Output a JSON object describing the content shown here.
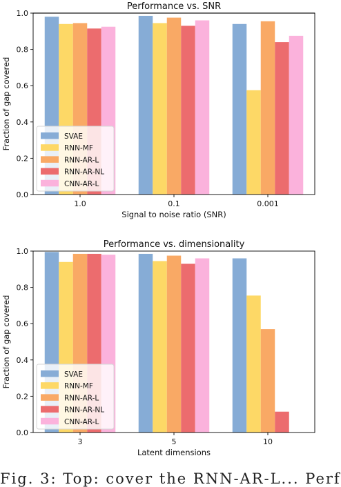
{
  "chart_data": [
    {
      "type": "bar",
      "title": "Performance vs. SNR",
      "xlabel": "Signal to noise ratio (SNR)",
      "ylabel": "Fraction of gap covered",
      "categories": [
        "1.0",
        "0.1",
        "0.001"
      ],
      "ylim": [
        0,
        1.0
      ],
      "yticks": [
        "0.0",
        "0.2",
        "0.4",
        "0.6",
        "0.8",
        "1.0"
      ],
      "reference_line": 1.0,
      "grid": false,
      "legend_position": "lower-left",
      "series": [
        {
          "name": "SVAE",
          "color": "#86acd6",
          "values": [
            0.98,
            0.985,
            0.94
          ]
        },
        {
          "name": "RNN-MF",
          "color": "#fdd866",
          "values": [
            0.94,
            0.945,
            0.575
          ]
        },
        {
          "name": "RNN-AR-L",
          "color": "#f9a965",
          "values": [
            0.945,
            0.975,
            0.955
          ]
        },
        {
          "name": "RNN-AR-NL",
          "color": "#ec6c6e",
          "values": [
            0.915,
            0.93,
            0.84
          ]
        },
        {
          "name": "CNN-AR-L",
          "color": "#fbb2dc",
          "values": [
            0.925,
            0.96,
            0.875
          ]
        }
      ]
    },
    {
      "type": "bar",
      "title": "Performance vs. dimensionality",
      "xlabel": "Latent dimensions",
      "ylabel": "Fraction of gap covered",
      "categories": [
        "3",
        "5",
        "10"
      ],
      "ylim": [
        0,
        1.0
      ],
      "yticks": [
        "0.0",
        "0.2",
        "0.4",
        "0.6",
        "0.8",
        "1.0"
      ],
      "grid": false,
      "legend_position": "lower-left",
      "series": [
        {
          "name": "SVAE",
          "color": "#86acd6",
          "values": [
            0.995,
            0.985,
            0.96
          ]
        },
        {
          "name": "RNN-MF",
          "color": "#fdd866",
          "values": [
            0.94,
            0.945,
            0.755
          ]
        },
        {
          "name": "RNN-AR-L",
          "color": "#f9a965",
          "values": [
            0.985,
            0.975,
            0.57
          ]
        },
        {
          "name": "RNN-AR-NL",
          "color": "#ec6c6e",
          "values": [
            0.985,
            0.93,
            0.115
          ]
        },
        {
          "name": "CNN-AR-L",
          "color": "#fbb2dc",
          "values": [
            0.98,
            0.96,
            0.0
          ]
        }
      ]
    }
  ],
  "caption_fragment": "Fig. 3: Top: cover the RNN-AR-L... Perf"
}
